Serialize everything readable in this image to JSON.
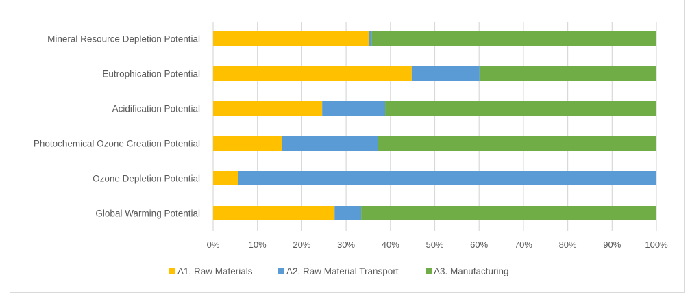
{
  "chart_data": {
    "type": "bar",
    "orientation": "horizontal",
    "stacked": "percent",
    "title": "",
    "xlabel": "",
    "ylabel": "",
    "xlim": [
      0,
      100
    ],
    "x_ticks": [
      "0%",
      "10%",
      "20%",
      "30%",
      "40%",
      "50%",
      "60%",
      "70%",
      "80%",
      "90%",
      "100%"
    ],
    "grid": true,
    "legend_position": "bottom",
    "categories": [
      "Mineral Resource Depletion Potential",
      "Eutrophication Potential",
      "Acidification Potential",
      "Photochemical Ozone Creation Potential",
      "Ozone Depletion Potential",
      "Global Warming Potential"
    ],
    "series": [
      {
        "name": "A1. Raw Materials",
        "color": "#ffc000",
        "values": [
          35.2,
          44.8,
          24.6,
          15.6,
          5.6,
          27.4
        ]
      },
      {
        "name": "A2. Raw Material Transport",
        "color": "#5b9bd5",
        "values": [
          0.6,
          15.3,
          14.2,
          21.5,
          94.4,
          6.0
        ]
      },
      {
        "name": "A3. Manufacturing",
        "color": "#70ad47",
        "values": [
          64.2,
          39.9,
          61.2,
          62.9,
          0.0,
          66.6
        ]
      }
    ]
  }
}
